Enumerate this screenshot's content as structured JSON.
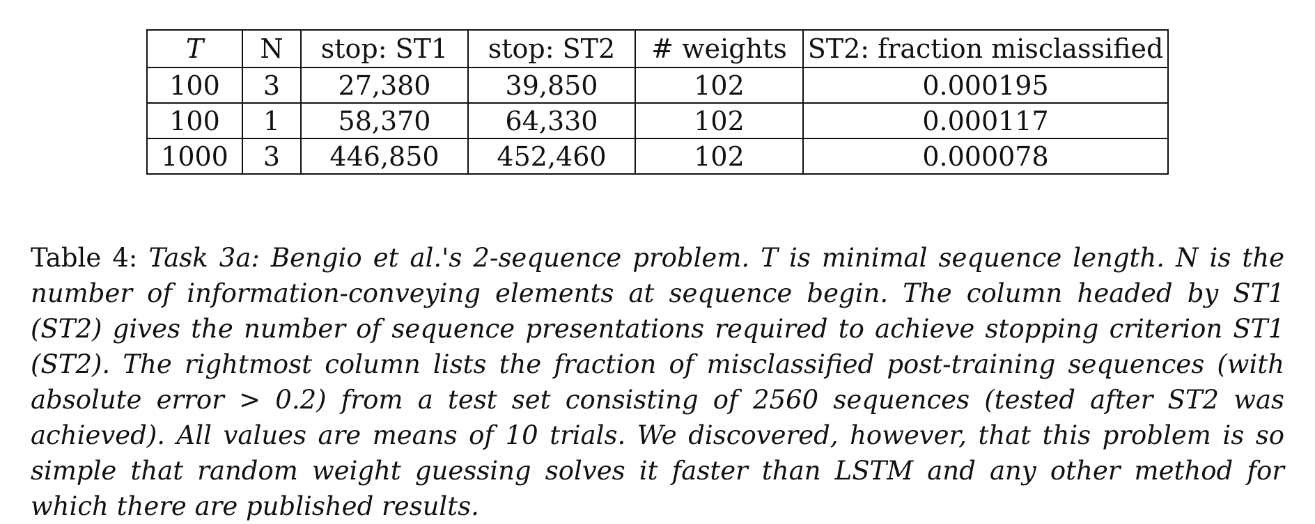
{
  "table": {
    "headers": [
      "T",
      "N",
      "stop: ST1",
      "stop: ST2",
      "# weights",
      "ST2: fraction misclassified"
    ],
    "rows": [
      [
        "100",
        "3",
        "27,380",
        "39,850",
        "102",
        "0.000195"
      ],
      [
        "100",
        "1",
        "58,370",
        "64,330",
        "102",
        "0.000117"
      ],
      [
        "1000",
        "3",
        "446,850",
        "452,460",
        "102",
        "0.000078"
      ]
    ]
  },
  "caption": {
    "label": "Table 4:",
    "text": "Task 3a: Bengio et al.'s 2-sequence problem. T is minimal sequence length. N is the number of information-conveying elements at sequence begin. The column headed by ST1 (ST2) gives the number of sequence presentations required to achieve stopping criterion ST1 (ST2). The rightmost column lists the fraction of misclassified post-training sequences (with absolute error > 0.2) from a test set consisting of 2560 sequences (tested after ST2 was achieved). All values are means of 10 trials. We discovered, however, that this problem is so simple that random weight guessing solves it faster than LSTM and any other method for which there are published results."
  }
}
